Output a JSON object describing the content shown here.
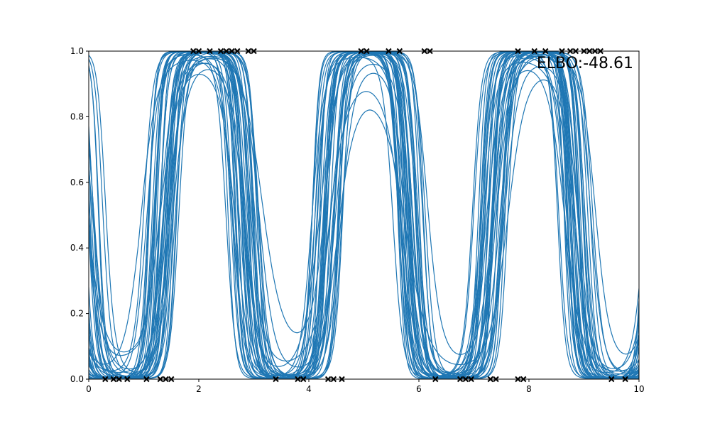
{
  "chart_data": {
    "type": "line",
    "title": "",
    "xlabel": "",
    "ylabel": "",
    "xlim": [
      0,
      10
    ],
    "ylim": [
      0,
      1
    ],
    "grid": false,
    "line_color": "#1f77b4",
    "marker_color": "#000000",
    "x_ticks": [
      "0",
      "2",
      "4",
      "6",
      "8",
      "10"
    ],
    "y_ticks": [
      "0.0",
      "0.2",
      "0.4",
      "0.6",
      "0.8",
      "1.0"
    ],
    "annotation": "ELBO:-48.61",
    "n_samples": 40,
    "observations": {
      "x_at_1": [
        1.9,
        2.0,
        2.2,
        2.4,
        2.5,
        2.6,
        2.7,
        2.9,
        3.0,
        4.95,
        5.05,
        5.45,
        5.65,
        6.1,
        6.2,
        7.8,
        8.1,
        8.3,
        8.6,
        8.75,
        8.85,
        9.0,
        9.1,
        9.2,
        9.3
      ],
      "x_at_0": [
        0.3,
        0.45,
        0.55,
        0.7,
        1.05,
        1.3,
        1.4,
        1.5,
        3.4,
        3.8,
        3.9,
        4.35,
        4.45,
        4.6,
        6.3,
        6.75,
        6.85,
        6.95,
        7.3,
        7.4,
        7.8,
        7.9,
        9.5,
        9.75
      ]
    }
  }
}
